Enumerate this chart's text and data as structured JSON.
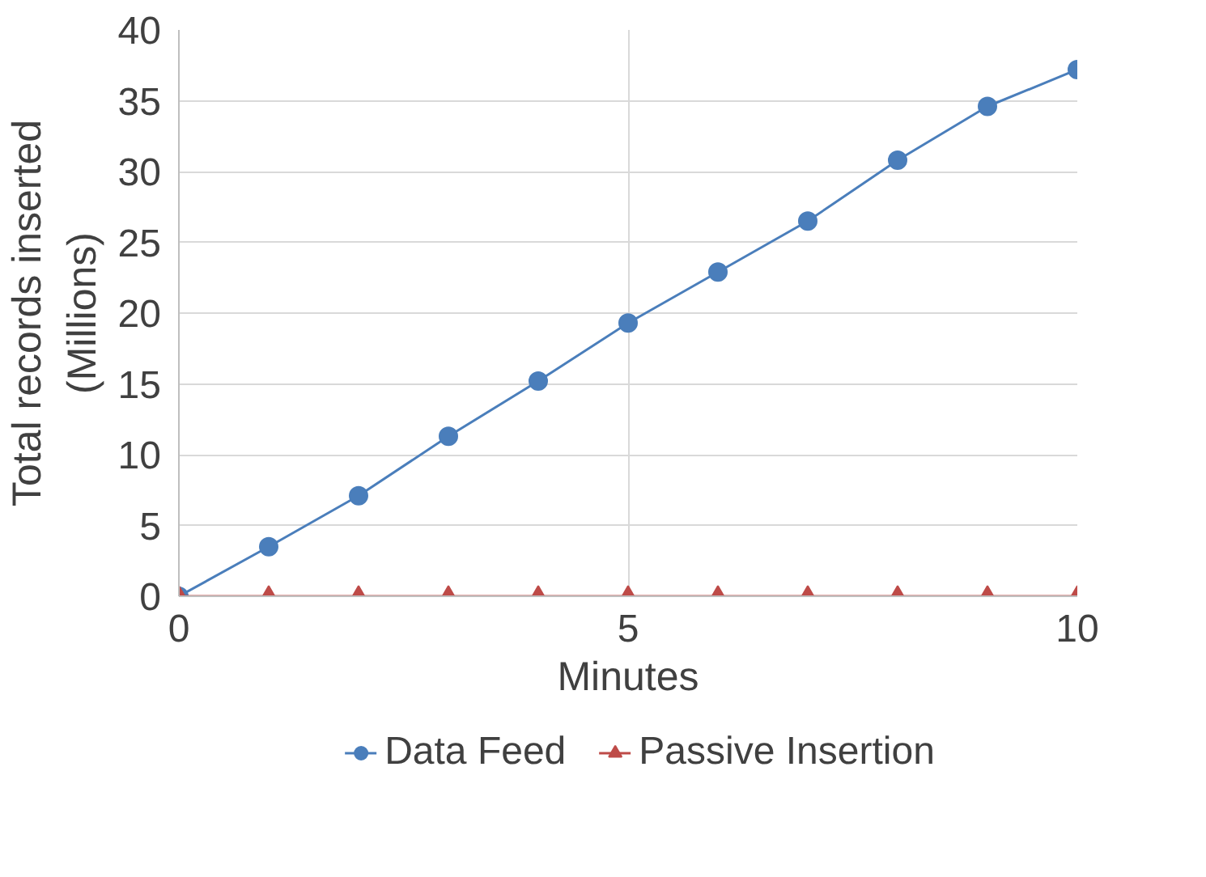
{
  "chart_data": {
    "type": "line",
    "xlabel": "Minutes",
    "ylabel": "Total records inserted\n(Millions)",
    "x": [
      0,
      1,
      2,
      3,
      4,
      5,
      6,
      7,
      8,
      9,
      10
    ],
    "series": [
      {
        "name": "Data Feed",
        "color": "#4a7ebb",
        "marker": "circle",
        "values": [
          0,
          3.5,
          7.1,
          11.3,
          15.2,
          19.3,
          22.9,
          26.5,
          30.8,
          34.6,
          37.2
        ]
      },
      {
        "name": "Passive Insertion",
        "color": "#be4b48",
        "marker": "triangle",
        "values": [
          0,
          0,
          0,
          0,
          0,
          0,
          0,
          0,
          0,
          0,
          0
        ]
      }
    ],
    "xlim": [
      0,
      10
    ],
    "ylim": [
      0,
      40
    ],
    "xticks": [
      0,
      5,
      10
    ],
    "yticks": [
      0,
      5,
      10,
      15,
      20,
      25,
      30,
      35,
      40
    ],
    "grid": true,
    "legend": "bottom"
  }
}
